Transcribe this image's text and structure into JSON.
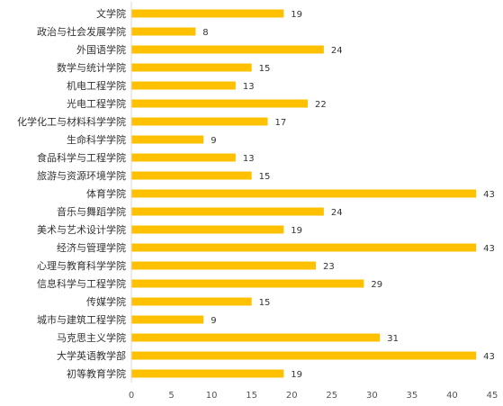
{
  "chart_data": {
    "type": "bar",
    "orientation": "horizontal",
    "categories": [
      "文学院",
      "政治与社会发展学院",
      "外国语学院",
      "数学与统计学院",
      "机电工程学院",
      "光电工程学院",
      "化学化工与材料科学学院",
      "生命科学学院",
      "食品科学与工程学院",
      "旅游与资源环境学院",
      "体育学院",
      "音乐与舞蹈学院",
      "美术与艺术设计学院",
      "经济与管理学院",
      "心理与教育科学学院",
      "信息科学与工程学院",
      "传媒学院",
      "城市与建筑工程学院",
      "马克思主义学院",
      "大学英语教学部",
      "初等教育学院"
    ],
    "values": [
      19,
      8,
      24,
      15,
      13,
      22,
      17,
      9,
      13,
      15,
      43,
      24,
      19,
      43,
      23,
      29,
      15,
      9,
      31,
      43,
      19
    ],
    "xlim": [
      0,
      45
    ],
    "xticks": [
      0,
      5,
      10,
      15,
      20,
      25,
      30,
      35,
      40,
      45
    ],
    "bar_color": "#FFC000",
    "grid": false,
    "title": "",
    "xlabel": "",
    "ylabel": ""
  }
}
